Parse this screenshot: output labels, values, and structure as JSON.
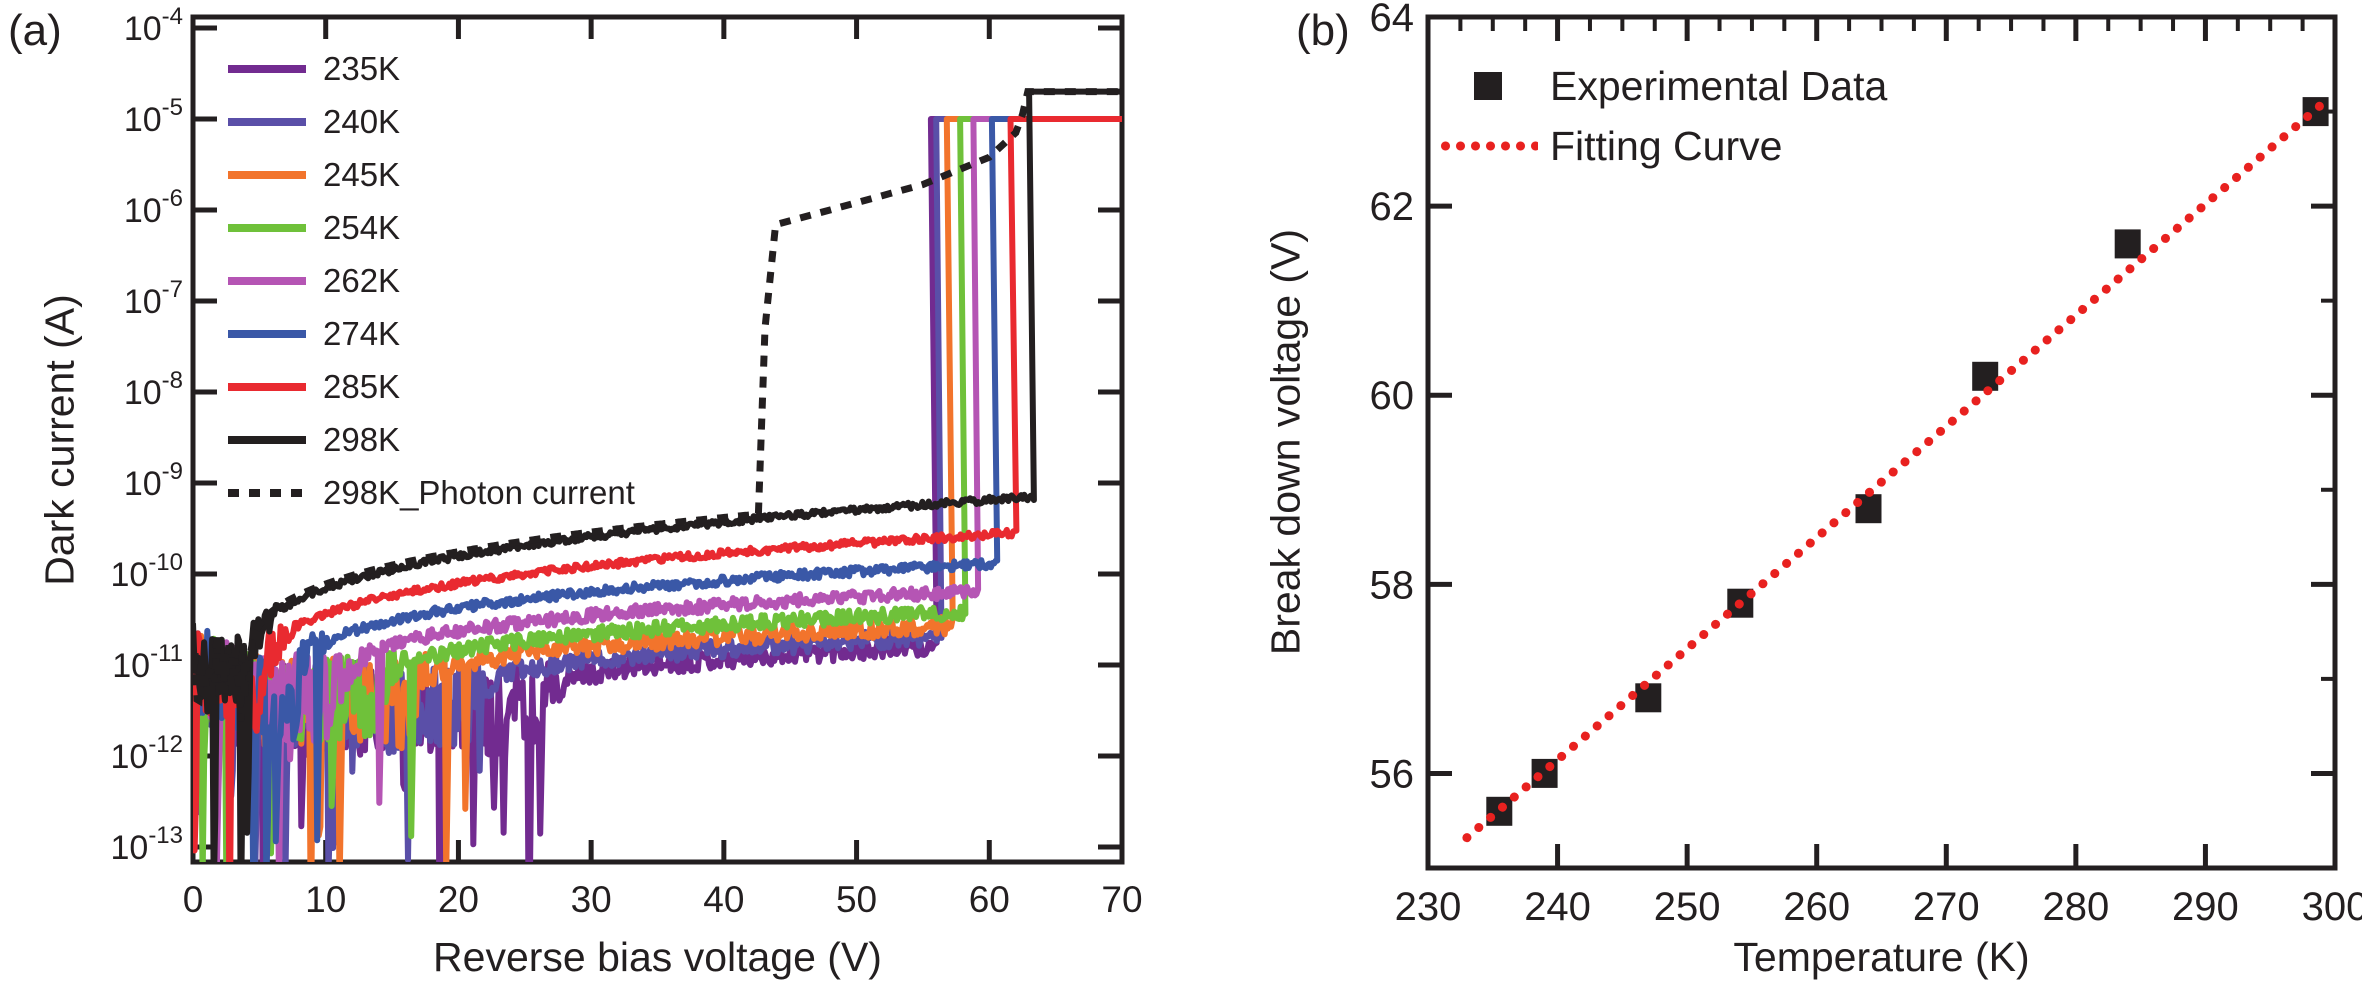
{
  "figure": {
    "background": "#ffffff",
    "axis_color": "#231f20",
    "panel_a_label": "(a)",
    "panel_b_label": "(b)"
  },
  "chart_data": [
    {
      "type": "line",
      "panel": "a",
      "xlabel": "Reverse bias voltage (V)",
      "ylabel": "Dark current (A)",
      "xlim": [
        0,
        70
      ],
      "x_ticks": [
        0,
        10,
        20,
        30,
        40,
        50,
        60,
        70
      ],
      "y_scale": "log",
      "y_tick_base": "10",
      "y_tick_exponents": [
        -4,
        -5,
        -6,
        -7,
        -8,
        -9,
        -10,
        -11,
        -12,
        -13
      ],
      "ylim_exponents": [
        -13,
        -4
      ],
      "grid": false,
      "legend_position": "upper-left-inside",
      "series": [
        {
          "name": "235K",
          "color": "#722b90",
          "vbr": 55.6,
          "onset": 26.0,
          "floor": 3.2e-12,
          "plateau": 1.6e-11,
          "sat": 1e-05,
          "spiky": 27.5,
          "rn": 0.11,
          "seed": 11
        },
        {
          "name": "240K",
          "color": "#5a4fa8",
          "vbr": 56.0,
          "onset": 21.0,
          "floor": 3.4e-12,
          "plateau": 2e-11,
          "sat": 1e-05,
          "spiky": 23.0,
          "rn": 0.1,
          "seed": 22
        },
        {
          "name": "245K",
          "color": "#f2742c",
          "vbr": 56.8,
          "onset": 16.5,
          "floor": 3.7e-12,
          "plateau": 2.7e-11,
          "sat": 1e-05,
          "spiky": 21.0,
          "rn": 0.1,
          "seed": 33
        },
        {
          "name": "254K",
          "color": "#6fc13a",
          "vbr": 57.8,
          "onset": 14.0,
          "floor": 4e-12,
          "plateau": 3.8e-11,
          "sat": 1e-05,
          "spiky": 16.5,
          "rn": 0.08,
          "seed": 44
        },
        {
          "name": "262K",
          "color": "#b555b4",
          "vbr": 58.8,
          "onset": 11.0,
          "floor": 4.3e-12,
          "plateau": 6.5e-11,
          "sat": 1e-05,
          "spiky": 14.0,
          "rn": 0.07,
          "seed": 55
        },
        {
          "name": "274K",
          "color": "#3a58a7",
          "vbr": 60.2,
          "onset": 8.0,
          "floor": 4.6e-12,
          "plateau": 1.3e-10,
          "sat": 1e-05,
          "spiky": 10.0,
          "rn": 0.05,
          "seed": 66
        },
        {
          "name": "285K",
          "color": "#e92a30",
          "vbr": 61.6,
          "onset": 5.5,
          "floor": 5e-12,
          "plateau": 2.8e-10,
          "sat": 1e-05,
          "spiky": 5.8,
          "rn": 0.04,
          "seed": 77
        },
        {
          "name": "298K",
          "color": "#231f20",
          "vbr": 63.0,
          "onset": 4.3,
          "floor": 5.5e-12,
          "plateau": 7e-10,
          "sat": 2e-05,
          "spiky": 4.6,
          "rn": 0.035,
          "seed": 88
        }
      ],
      "photon": {
        "name": "298K_Photon current",
        "color": "#231f20",
        "style": "dotted",
        "punch_v": 42.6,
        "rise_log10": [
          [
            43.1,
            -7.3
          ],
          [
            43.9,
            -6.16
          ],
          [
            48.0,
            -6.0
          ],
          [
            55.0,
            -5.72
          ],
          [
            60.0,
            -5.42
          ],
          [
            62.0,
            -5.15
          ],
          [
            62.5,
            -4.95
          ]
        ],
        "join_v": 62.9,
        "sat": 2e-05,
        "seed": 99
      }
    },
    {
      "type": "scatter",
      "panel": "b",
      "xlabel": "Temperature (K)",
      "ylabel": "Break down voltage (V)",
      "xlim": [
        230,
        300
      ],
      "ylim": [
        55,
        64
      ],
      "x_major_ticks": [
        230,
        240,
        250,
        260,
        270,
        280,
        290,
        300
      ],
      "y_major_ticks": [
        56,
        58,
        60,
        62,
        64
      ],
      "top_minor_step": 2.5,
      "right_minor_step": 1,
      "grid": false,
      "marker": "square",
      "marker_color": "#231f20",
      "legend": [
        "Experimental Data",
        "Fitting Curve"
      ],
      "points": {
        "x": [
          235.5,
          239.0,
          247.0,
          254.1,
          264.0,
          273.0,
          284.0,
          298.5
        ],
        "y": [
          55.6,
          56.0,
          56.8,
          57.8,
          58.8,
          60.2,
          61.6,
          63.0
        ]
      },
      "fit": {
        "x1": 233.0,
        "y1": 55.32,
        "x2": 299.6,
        "y2": 63.15,
        "color": "#e8211f",
        "style": "dotted"
      }
    }
  ]
}
